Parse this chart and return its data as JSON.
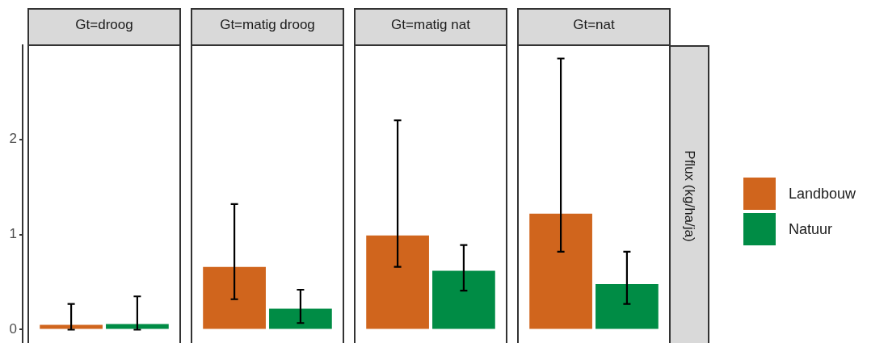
{
  "chart_data": {
    "type": "bar",
    "categories": [
      "Gt=droog",
      "Gt=matig droog",
      "Gt=matig nat",
      "Gt=nat"
    ],
    "ylim": [
      -0.14,
      2.99
    ],
    "yticks": [
      0,
      1,
      2
    ],
    "grid": false,
    "legend": "right",
    "annotations": [
      "Pflux (kg/ha/ja)"
    ],
    "series": [
      {
        "name": "Landbouw",
        "color": "#d0651d",
        "values": [
          0.05,
          0.66,
          0.99,
          1.22
        ],
        "errors": [
          [
            0,
            0.27
          ],
          [
            0.32,
            1.32
          ],
          [
            0.66,
            2.2
          ],
          [
            0.82,
            2.85
          ]
        ]
      },
      {
        "name": "Natuur",
        "color": "#008c45",
        "values": [
          0.06,
          0.22,
          0.62,
          0.48
        ],
        "errors": [
          [
            0,
            0.35
          ],
          [
            0.07,
            0.42
          ],
          [
            0.41,
            0.89
          ],
          [
            0.27,
            0.82
          ]
        ]
      }
    ]
  }
}
